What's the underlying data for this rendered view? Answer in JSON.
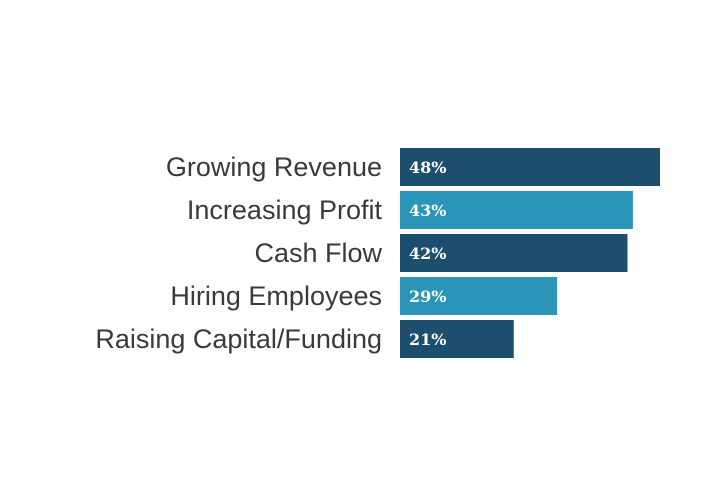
{
  "chart_data": {
    "type": "bar",
    "orientation": "horizontal",
    "categories": [
      "Growing Revenue",
      "Increasing Profit",
      "Cash Flow",
      "Hiring Employees",
      "Raising Capital/Funding"
    ],
    "values": [
      48,
      43,
      42,
      29,
      21
    ],
    "value_labels": [
      "48%",
      "43%",
      "42%",
      "29%",
      "21%"
    ],
    "unit": "%",
    "title": "",
    "xlabel": "",
    "ylabel": "",
    "xlim": [
      0,
      48
    ],
    "grid": false,
    "legend": "none",
    "colors": [
      "#1e4e6e",
      "#2a95b8",
      "#1e4e6e",
      "#2a95b8",
      "#1e4e6e"
    ]
  }
}
